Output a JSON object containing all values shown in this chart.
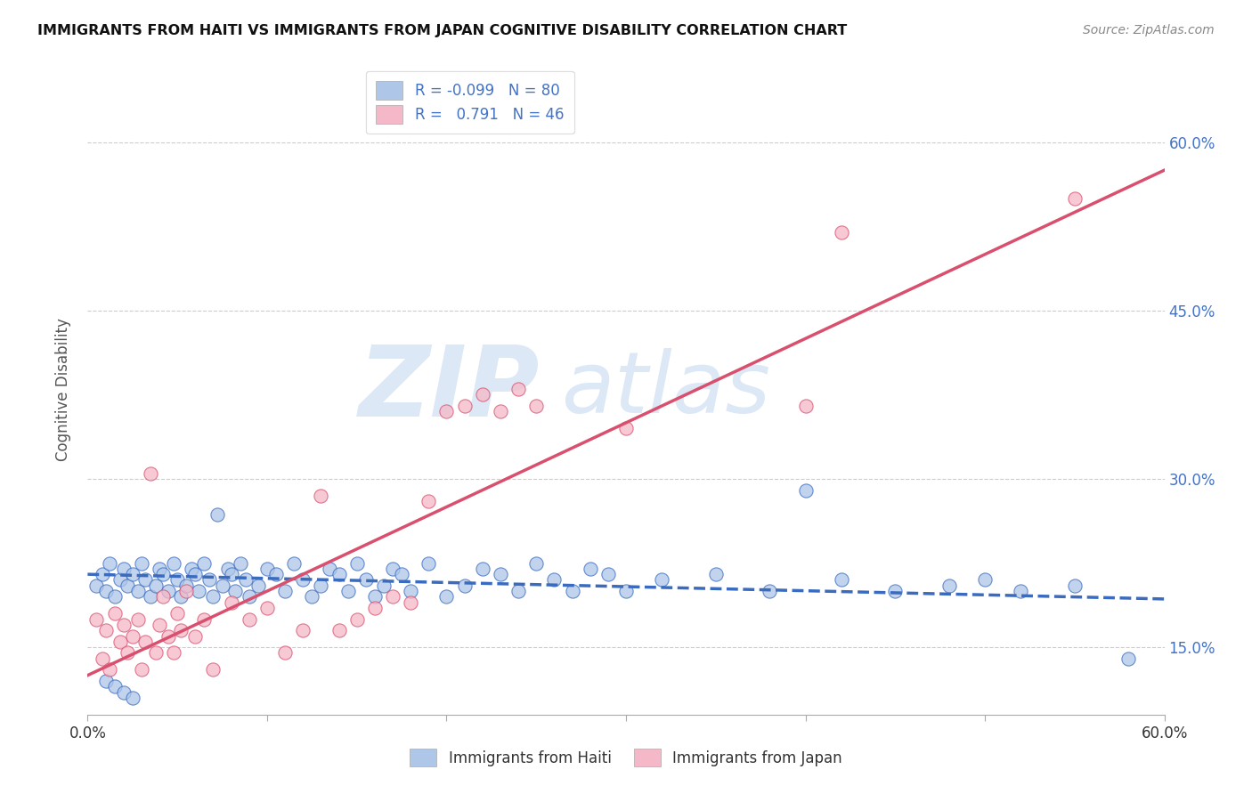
{
  "title": "IMMIGRANTS FROM HAITI VS IMMIGRANTS FROM JAPAN COGNITIVE DISABILITY CORRELATION CHART",
  "source": "Source: ZipAtlas.com",
  "ylabel": "Cognitive Disability",
  "legend_haiti": "Immigrants from Haiti",
  "legend_japan": "Immigrants from Japan",
  "R_haiti": -0.099,
  "N_haiti": 80,
  "R_japan": 0.791,
  "N_japan": 46,
  "haiti_color": "#aec6e8",
  "japan_color": "#f5b8c8",
  "haiti_line_color": "#3a6bbf",
  "japan_line_color": "#d94f6e",
  "watermark_zip": "ZIP",
  "watermark_atlas": "atlas",
  "background_color": "#ffffff",
  "xlim": [
    0.0,
    0.6
  ],
  "ylim": [
    0.09,
    0.67
  ],
  "y_tick_values": [
    0.15,
    0.3,
    0.45,
    0.6
  ],
  "x_tick_values": [
    0.0,
    0.1,
    0.2,
    0.3,
    0.4,
    0.5,
    0.6
  ],
  "haiti_scatter_x": [
    0.005,
    0.008,
    0.01,
    0.012,
    0.015,
    0.018,
    0.02,
    0.022,
    0.025,
    0.028,
    0.03,
    0.032,
    0.035,
    0.038,
    0.04,
    0.042,
    0.045,
    0.048,
    0.05,
    0.052,
    0.055,
    0.058,
    0.06,
    0.062,
    0.065,
    0.068,
    0.07,
    0.072,
    0.075,
    0.078,
    0.08,
    0.082,
    0.085,
    0.088,
    0.09,
    0.095,
    0.1,
    0.105,
    0.11,
    0.115,
    0.12,
    0.125,
    0.13,
    0.135,
    0.14,
    0.145,
    0.15,
    0.155,
    0.16,
    0.165,
    0.17,
    0.175,
    0.18,
    0.19,
    0.2,
    0.21,
    0.22,
    0.23,
    0.24,
    0.25,
    0.26,
    0.27,
    0.28,
    0.29,
    0.3,
    0.32,
    0.35,
    0.38,
    0.4,
    0.42,
    0.45,
    0.48,
    0.5,
    0.52,
    0.55,
    0.58,
    0.01,
    0.015,
    0.02,
    0.025
  ],
  "haiti_scatter_y": [
    0.205,
    0.215,
    0.2,
    0.225,
    0.195,
    0.21,
    0.22,
    0.205,
    0.215,
    0.2,
    0.225,
    0.21,
    0.195,
    0.205,
    0.22,
    0.215,
    0.2,
    0.225,
    0.21,
    0.195,
    0.205,
    0.22,
    0.215,
    0.2,
    0.225,
    0.21,
    0.195,
    0.268,
    0.205,
    0.22,
    0.215,
    0.2,
    0.225,
    0.21,
    0.195,
    0.205,
    0.22,
    0.215,
    0.2,
    0.225,
    0.21,
    0.195,
    0.205,
    0.22,
    0.215,
    0.2,
    0.225,
    0.21,
    0.195,
    0.205,
    0.22,
    0.215,
    0.2,
    0.225,
    0.195,
    0.205,
    0.22,
    0.215,
    0.2,
    0.225,
    0.21,
    0.2,
    0.22,
    0.215,
    0.2,
    0.21,
    0.215,
    0.2,
    0.29,
    0.21,
    0.2,
    0.205,
    0.21,
    0.2,
    0.205,
    0.14,
    0.12,
    0.115,
    0.11,
    0.105
  ],
  "japan_scatter_x": [
    0.005,
    0.008,
    0.01,
    0.012,
    0.015,
    0.018,
    0.02,
    0.022,
    0.025,
    0.028,
    0.03,
    0.032,
    0.035,
    0.038,
    0.04,
    0.042,
    0.045,
    0.048,
    0.05,
    0.052,
    0.055,
    0.06,
    0.065,
    0.07,
    0.08,
    0.09,
    0.1,
    0.11,
    0.12,
    0.13,
    0.14,
    0.15,
    0.16,
    0.17,
    0.18,
    0.19,
    0.2,
    0.21,
    0.22,
    0.23,
    0.24,
    0.25,
    0.3,
    0.4,
    0.42,
    0.55
  ],
  "japan_scatter_y": [
    0.175,
    0.14,
    0.165,
    0.13,
    0.18,
    0.155,
    0.17,
    0.145,
    0.16,
    0.175,
    0.13,
    0.155,
    0.305,
    0.145,
    0.17,
    0.195,
    0.16,
    0.145,
    0.18,
    0.165,
    0.2,
    0.16,
    0.175,
    0.13,
    0.19,
    0.175,
    0.185,
    0.145,
    0.165,
    0.285,
    0.165,
    0.175,
    0.185,
    0.195,
    0.19,
    0.28,
    0.36,
    0.365,
    0.375,
    0.36,
    0.38,
    0.365,
    0.345,
    0.365,
    0.52,
    0.55
  ],
  "haiti_line_y_start": 0.215,
  "haiti_line_y_end": 0.193,
  "japan_line_y_start": 0.125,
  "japan_line_y_end": 0.575
}
